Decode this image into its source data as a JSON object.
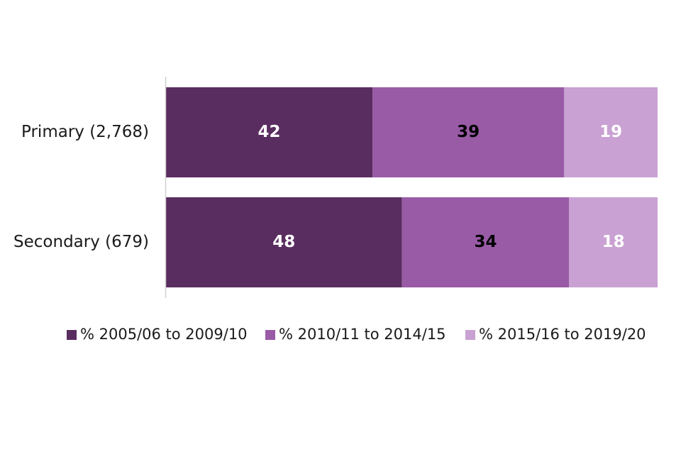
{
  "chart_data": {
    "type": "bar",
    "orientation": "horizontal",
    "stacked": true,
    "title": "",
    "xlabel": "",
    "ylabel": "",
    "xlim": [
      0,
      100
    ],
    "grid": false,
    "legend_position": "bottom",
    "categories": [
      "Primary (2,768)",
      "Secondary (679)"
    ],
    "series": [
      {
        "name": "% 2005/06 to 2009/10",
        "values": [
          42,
          48
        ],
        "color": "#5a2d60",
        "label_color": "#ffffff"
      },
      {
        "name": "% 2010/11 to 2014/15",
        "values": [
          39,
          34
        ],
        "color": "#995ba6",
        "label_color": "#000000"
      },
      {
        "name": "% 2015/16 to 2019/20",
        "values": [
          19,
          18
        ],
        "color": "#c9a1d3",
        "label_color": "#ffffff"
      }
    ]
  }
}
